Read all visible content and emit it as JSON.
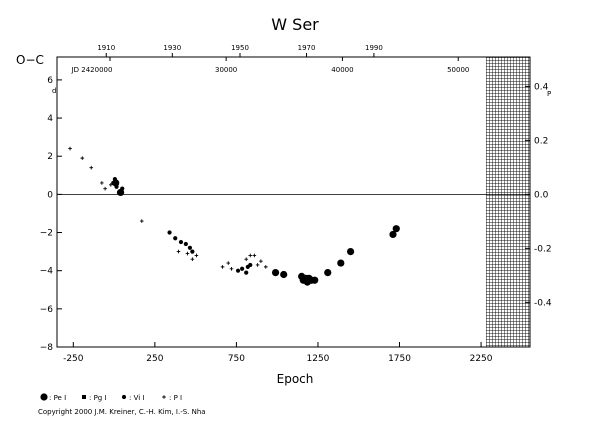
{
  "chart_data": {
    "type": "scatter",
    "title": "W Ser",
    "ylabel": "O−C",
    "ylabel_unit": "d",
    "xlabel": "Epoch",
    "right_unit": "P",
    "xlim": [
      -350,
      2550
    ],
    "ylim": [
      -8,
      7.2
    ],
    "x_ticks": [
      -250,
      250,
      750,
      1250,
      1750,
      2250
    ],
    "x_tick_labels": [
      "-250",
      "250",
      "750",
      "1250",
      "1750",
      "2250"
    ],
    "y_ticks": [
      -8,
      -6,
      -4,
      -2,
      0,
      2,
      4,
      6
    ],
    "y_tick_labels": [
      "−8",
      "−6",
      "−4",
      "−2",
      "0",
      "2",
      "4",
      "6"
    ],
    "right_ticks": [
      -0.4,
      -0.2,
      0.0,
      0.2,
      0.4
    ],
    "right_tick_labels": [
      "-0.4",
      "-0.2",
      "0.0",
      "0.2",
      "0.4"
    ],
    "right_scale_days_per_unit": 14.15,
    "top_year_ticks": [
      {
        "label": "1910",
        "epoch": -48
      },
      {
        "label": "1930",
        "epoch": 357
      },
      {
        "label": "1950",
        "epoch": 772
      },
      {
        "label": "1970",
        "epoch": 1180
      },
      {
        "label": "1990",
        "epoch": 1593
      }
    ],
    "top_jd_ticks": [
      {
        "label": "JD 2420000",
        "epoch": -25,
        "prefix": true
      },
      {
        "label": "30000",
        "epoch": 687
      },
      {
        "label": "40000",
        "epoch": 1400
      },
      {
        "label": "50000",
        "epoch": 2110
      }
    ],
    "hatched_region": [
      2280,
      2550
    ],
    "zero_line": 0,
    "legend": [
      {
        "symbol": "big-dot",
        "label": ": Pe I"
      },
      {
        "symbol": "square",
        "label": ": Pg I"
      },
      {
        "symbol": "dot",
        "label": ": Vi I"
      },
      {
        "symbol": "plus",
        "label": ": P I"
      }
    ],
    "series": [
      {
        "symbol": "plus",
        "points": [
          [
            -270,
            2.4
          ],
          [
            -195,
            1.9
          ],
          [
            -140,
            1.4
          ],
          [
            -75,
            0.6
          ],
          [
            -55,
            0.3
          ],
          [
            -20,
            0.5
          ],
          [
            170,
            -1.4
          ],
          [
            395,
            -3.0
          ],
          [
            450,
            -3.1
          ],
          [
            480,
            -3.4
          ],
          [
            505,
            -3.2
          ],
          [
            665,
            -3.8
          ],
          [
            700,
            -3.6
          ],
          [
            720,
            -3.9
          ],
          [
            810,
            -3.4
          ],
          [
            835,
            -3.2
          ],
          [
            860,
            -3.2
          ],
          [
            880,
            -3.7
          ],
          [
            900,
            -3.5
          ],
          [
            930,
            -3.8
          ]
        ]
      },
      {
        "symbol": "dot",
        "points": [
          [
            -5,
            0.6
          ],
          [
            5,
            0.8
          ],
          [
            15,
            0.4
          ],
          [
            30,
            0.1
          ],
          [
            45,
            0.2
          ],
          [
            50,
            0.3
          ],
          [
            340,
            -2.0
          ],
          [
            375,
            -2.3
          ],
          [
            410,
            -2.5
          ],
          [
            440,
            -2.6
          ],
          [
            465,
            -2.8
          ],
          [
            480,
            -3.0
          ],
          [
            760,
            -4.0
          ],
          [
            785,
            -3.9
          ],
          [
            810,
            -4.1
          ],
          [
            820,
            -3.8
          ],
          [
            835,
            -3.7
          ]
        ]
      },
      {
        "symbol": "big-dot",
        "points": [
          [
            10,
            0.6
          ],
          [
            40,
            0.1
          ],
          [
            990,
            -4.1
          ],
          [
            1040,
            -4.2
          ],
          [
            1150,
            -4.3
          ],
          [
            1160,
            -4.5
          ],
          [
            1175,
            -4.4
          ],
          [
            1185,
            -4.6
          ],
          [
            1195,
            -4.4
          ],
          [
            1210,
            -4.5
          ],
          [
            1230,
            -4.5
          ],
          [
            1310,
            -4.1
          ],
          [
            1390,
            -3.6
          ],
          [
            1450,
            -3.0
          ],
          [
            1710,
            -2.1
          ],
          [
            1730,
            -1.8
          ]
        ]
      }
    ]
  },
  "copyright": "Copyright 2000 J.M. Kreiner, C.-H. Kim, I.-S. Nha"
}
